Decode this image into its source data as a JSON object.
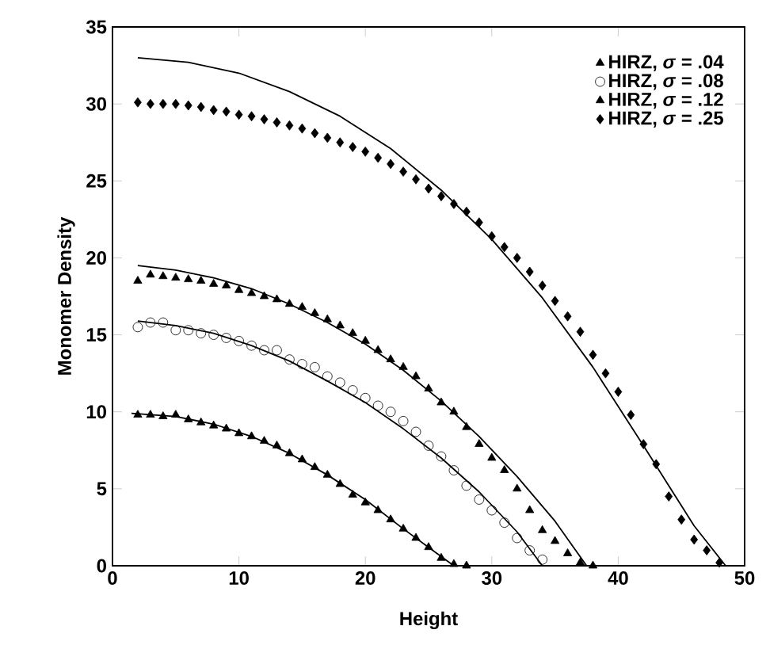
{
  "chart_data": {
    "type": "scatter",
    "xlabel": "Height",
    "ylabel": "Monomer Density",
    "xlim": [
      0,
      50
    ],
    "ylim": [
      0,
      35
    ],
    "xticks": [
      0,
      10,
      20,
      30,
      40,
      50
    ],
    "yticks": [
      0,
      5,
      10,
      15,
      20,
      25,
      30,
      35
    ],
    "grid": false,
    "legend": "top right",
    "series": [
      {
        "name": "HIRZ, *σ* = .04",
        "marker": "triangle",
        "color": "#000000",
        "x": [
          2,
          3,
          4,
          5,
          6,
          7,
          8,
          9,
          10,
          11,
          12,
          13,
          14,
          15,
          16,
          17,
          18,
          19,
          20,
          21,
          22,
          23,
          24,
          25,
          26,
          27,
          28
        ],
        "values": [
          9.8,
          9.8,
          9.7,
          9.8,
          9.5,
          9.3,
          9.1,
          8.9,
          8.6,
          8.4,
          8.1,
          7.8,
          7.3,
          6.9,
          6.4,
          5.9,
          5.3,
          4.6,
          4.1,
          3.6,
          3.0,
          2.4,
          1.8,
          1.2,
          0.5,
          0.1,
          0
        ]
      },
      {
        "name": "HIRZ, *σ* = .08",
        "marker": "circle",
        "color": "#000000",
        "x": [
          2,
          3,
          4,
          5,
          6,
          7,
          8,
          9,
          10,
          11,
          12,
          13,
          14,
          15,
          16,
          17,
          18,
          19,
          20,
          21,
          22,
          23,
          24,
          25,
          26,
          27,
          28,
          29,
          30,
          31,
          32,
          33,
          34
        ],
        "values": [
          15.5,
          15.8,
          15.8,
          15.3,
          15.3,
          15.1,
          15.0,
          14.8,
          14.6,
          14.3,
          14.0,
          14.0,
          13.4,
          13.1,
          12.9,
          12.3,
          11.9,
          11.4,
          10.9,
          10.4,
          10.0,
          9.4,
          8.7,
          7.8,
          7.1,
          6.2,
          5.2,
          4.3,
          3.6,
          2.8,
          1.8,
          1.0,
          0.4
        ]
      },
      {
        "name": "HIRZ, *σ* = .12",
        "marker": "triangle",
        "color": "#000000",
        "x": [
          2,
          3,
          4,
          5,
          6,
          7,
          8,
          9,
          10,
          11,
          12,
          13,
          14,
          15,
          16,
          17,
          18,
          19,
          20,
          21,
          22,
          23,
          24,
          25,
          26,
          27,
          28,
          29,
          30,
          31,
          32,
          33,
          34,
          35,
          36,
          37,
          38
        ],
        "values": [
          18.5,
          18.9,
          18.8,
          18.7,
          18.6,
          18.5,
          18.3,
          18.2,
          17.9,
          17.7,
          17.5,
          17.3,
          17.0,
          16.8,
          16.4,
          16.0,
          15.6,
          15.1,
          14.6,
          14.0,
          13.4,
          12.9,
          12.3,
          11.5,
          10.6,
          10.0,
          9.0,
          7.9,
          7.0,
          6.2,
          5.0,
          3.6,
          2.3,
          1.6,
          0.8,
          0.2,
          0
        ]
      },
      {
        "name": "HIRZ, *σ* = .25",
        "marker": "diamond",
        "color": "#000000",
        "x": [
          2,
          3,
          4,
          5,
          6,
          7,
          8,
          9,
          10,
          11,
          12,
          13,
          14,
          15,
          16,
          17,
          18,
          19,
          20,
          21,
          22,
          23,
          24,
          25,
          26,
          27,
          28,
          29,
          30,
          31,
          32,
          33,
          34,
          35,
          36,
          37,
          38,
          39,
          40,
          41,
          42,
          43,
          44,
          45,
          46,
          47,
          48
        ],
        "values": [
          30.1,
          30.0,
          30.0,
          30.0,
          29.9,
          29.8,
          29.6,
          29.5,
          29.3,
          29.2,
          29.0,
          28.8,
          28.6,
          28.4,
          28.1,
          27.8,
          27.5,
          27.2,
          26.9,
          26.5,
          26.1,
          25.6,
          25.1,
          24.5,
          24.0,
          23.5,
          23.0,
          22.3,
          21.4,
          20.7,
          20.0,
          19.1,
          18.2,
          17.2,
          16.2,
          15.2,
          13.7,
          12.5,
          11.3,
          9.8,
          7.9,
          6.6,
          4.5,
          3.0,
          1.7,
          1.0,
          0.2
        ]
      },
      {
        "type": "line",
        "color": "#000000",
        "x": [
          1.5,
          5,
          8,
          11,
          14,
          17,
          20,
          23,
          25,
          27
        ],
        "values": [
          9.9,
          9.7,
          9.2,
          8.4,
          7.3,
          5.9,
          4.3,
          2.4,
          1.2,
          0
        ]
      },
      {
        "type": "line",
        "color": "#000000",
        "x": [
          2,
          5,
          8,
          11,
          14,
          17,
          20,
          23,
          26,
          29,
          32,
          34
        ],
        "values": [
          15.9,
          15.6,
          15.1,
          14.3,
          13.3,
          12.0,
          10.6,
          8.9,
          7.0,
          4.8,
          2.2,
          0
        ]
      },
      {
        "type": "line",
        "color": "#000000",
        "x": [
          2,
          5,
          8,
          11,
          14,
          17,
          20,
          23,
          26,
          29,
          32,
          35,
          37.5
        ],
        "values": [
          19.5,
          19.2,
          18.7,
          18.0,
          17.0,
          15.8,
          14.4,
          12.7,
          10.7,
          8.4,
          5.8,
          2.9,
          0
        ]
      },
      {
        "type": "line",
        "color": "#000000",
        "x": [
          2,
          6,
          10,
          14,
          18,
          22,
          26,
          30,
          34,
          38,
          42,
          46,
          48.5
        ],
        "values": [
          33.0,
          32.7,
          32.0,
          30.8,
          29.2,
          27.1,
          24.4,
          21.2,
          17.4,
          12.9,
          7.8,
          2.6,
          0
        ]
      }
    ]
  }
}
